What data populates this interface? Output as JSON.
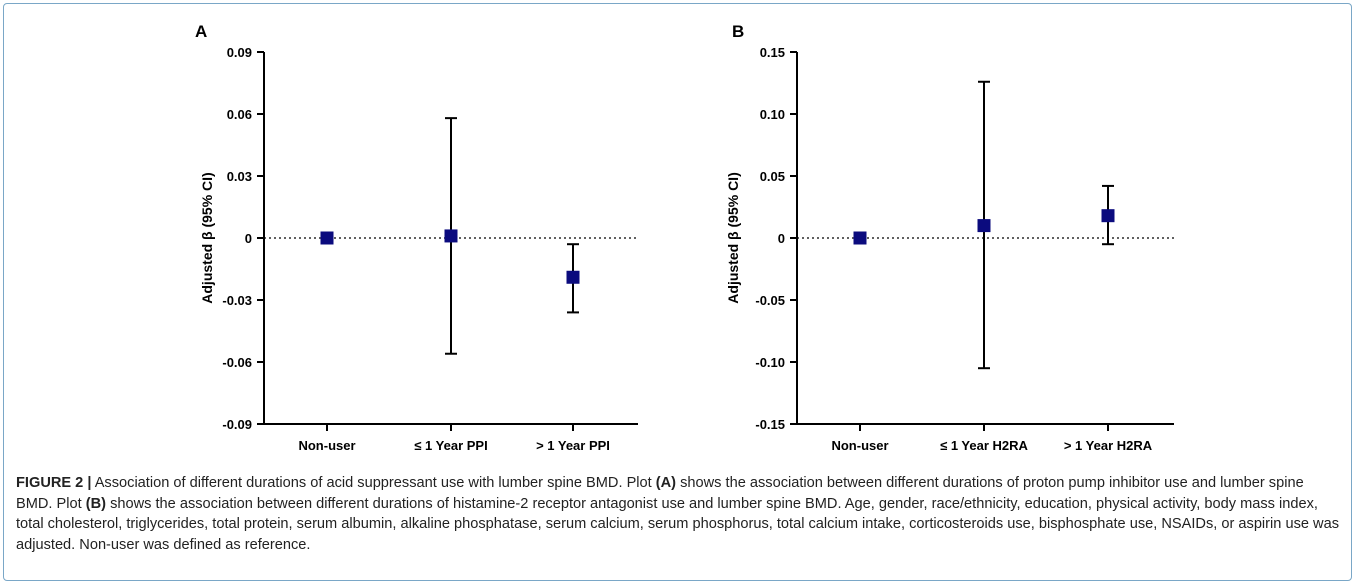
{
  "chart_data": [
    {
      "type": "scatter",
      "panel_label": "A",
      "ylabel": "Adjusted β (95% CI)",
      "xlabel": "",
      "categories": [
        "Non-user",
        "≤ 1 Year PPI",
        "> 1 Year PPI"
      ],
      "yticks": [
        0.09,
        0.06,
        0.03,
        0,
        -0.03,
        -0.06,
        -0.09
      ],
      "ytick_labels": [
        "0.09",
        "0.06",
        "0.03",
        "0",
        "-0.03",
        "-0.06",
        "-0.09"
      ],
      "ylim": [
        -0.09,
        0.09
      ],
      "reference_line": 0,
      "points": [
        {
          "category": "Non-user",
          "value": 0.0,
          "lower": null,
          "upper": null
        },
        {
          "category": "≤ 1 Year PPI",
          "value": 0.001,
          "lower": -0.056,
          "upper": 0.058
        },
        {
          "category": "> 1 Year PPI",
          "value": -0.019,
          "lower": -0.036,
          "upper": -0.003
        }
      ],
      "marker_color": "#0b0b7e"
    },
    {
      "type": "scatter",
      "panel_label": "B",
      "ylabel": "Adjusted β (95% CI)",
      "xlabel": "",
      "categories": [
        "Non-user",
        "≤ 1 Year H2RA",
        "> 1 Year H2RA"
      ],
      "yticks": [
        0.15,
        0.1,
        0.05,
        0,
        -0.05,
        -0.1,
        -0.15
      ],
      "ytick_labels": [
        "0.15",
        "0.10",
        "0.05",
        "0",
        "-0.05",
        "-0.10",
        "-0.15"
      ],
      "ylim": [
        -0.15,
        0.15
      ],
      "reference_line": 0,
      "points": [
        {
          "category": "Non-user",
          "value": 0.0,
          "lower": null,
          "upper": null
        },
        {
          "category": "≤ 1 Year H2RA",
          "value": 0.01,
          "lower": -0.105,
          "upper": 0.126
        },
        {
          "category": "> 1 Year H2RA",
          "value": 0.018,
          "lower": -0.005,
          "upper": 0.042
        }
      ],
      "marker_color": "#0b0b7e"
    }
  ],
  "caption": {
    "label": "FIGURE 2 |",
    "segments": [
      " Association of different durations of acid suppressant use with lumber spine BMD. Plot ",
      "(A)",
      " shows the association between different durations of proton pump inhibitor use and lumber spine BMD. Plot ",
      "(B)",
      " shows the association between different durations of histamine-2 receptor antagonist use and lumber spine BMD. Age, gender, race/ethnicity, education, physical activity, body mass index, total cholesterol, triglycerides, total protein, serum albumin, alkaline phosphatase, serum calcium, serum phosphorus, total calcium intake, corticosteroids use, bisphosphate use, NSAIDs, or aspirin use was adjusted. Non-user was defined as reference."
    ]
  }
}
